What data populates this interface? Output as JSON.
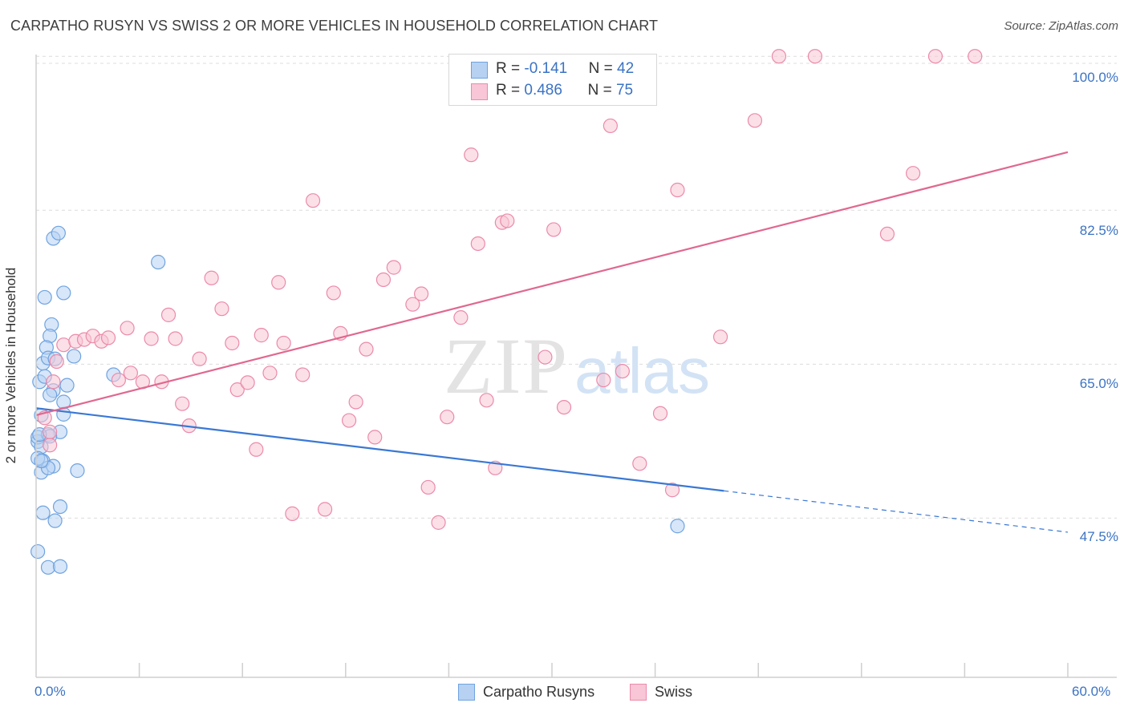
{
  "header": {
    "title": "CARPATHO RUSYN VS SWISS 2 OR MORE VEHICLES IN HOUSEHOLD CORRELATION CHART",
    "source": "Source: ZipAtlas.com"
  },
  "watermark": {
    "zip": "ZIP",
    "atlas": "atlas"
  },
  "legend": {
    "rows": [
      {
        "r_label": "R = ",
        "r_value": "-0.141",
        "n_label": "N = ",
        "n_value": "42"
      },
      {
        "r_label": "R = ",
        "r_value": "0.486",
        "n_label": "N = ",
        "n_value": "75"
      }
    ],
    "bottom": [
      "Carpatho Rusyns",
      "Swiss"
    ]
  },
  "chart_data": {
    "type": "scatter",
    "title": "CARPATHO RUSYN VS SWISS 2 OR MORE VEHICLES IN HOUSEHOLD CORRELATION CHART",
    "ylabel": "2 or more Vehicles in Household",
    "xlabel": "",
    "xlim": [
      0,
      60
    ],
    "ylim": [
      29.4,
      99.2
    ],
    "x_tick_labels": [
      "0.0%",
      "60.0%"
    ],
    "y_ticks": [
      47.5,
      65.0,
      82.5,
      100.0
    ],
    "y_tick_labels": [
      "47.5%",
      "65.0%",
      "82.5%",
      "100.0%"
    ],
    "grid": true,
    "colors": {
      "carpatho": "#6fa3e0",
      "carpatho_fill": "#b7d1f2",
      "swiss": "#ec8aa9",
      "swiss_fill": "#f8c6d6",
      "carpatho_line": "#3a78d4",
      "swiss_line": "#e0688f",
      "tick_text": "#3b73c4"
    },
    "series": [
      {
        "name": "Carpatho Rusyns",
        "points": [
          [
            0.2,
            63.0
          ],
          [
            0.5,
            72.6
          ],
          [
            0.4,
            65.1
          ],
          [
            0.3,
            59.2
          ],
          [
            0.1,
            56.2
          ],
          [
            0.1,
            56.7
          ],
          [
            0.3,
            55.6
          ],
          [
            0.4,
            54.0
          ],
          [
            0.3,
            52.7
          ],
          [
            0.1,
            54.3
          ],
          [
            0.1,
            43.7
          ],
          [
            0.4,
            48.1
          ],
          [
            0.7,
            41.9
          ],
          [
            1.0,
            79.3
          ],
          [
            1.3,
            79.9
          ],
          [
            1.6,
            73.1
          ],
          [
            0.9,
            69.5
          ],
          [
            0.8,
            68.2
          ],
          [
            0.6,
            66.9
          ],
          [
            0.7,
            65.7
          ],
          [
            1.1,
            65.6
          ],
          [
            2.2,
            65.9
          ],
          [
            0.5,
            63.6
          ],
          [
            1.0,
            62.0
          ],
          [
            0.8,
            61.5
          ],
          [
            1.8,
            62.6
          ],
          [
            1.6,
            60.7
          ],
          [
            1.6,
            59.3
          ],
          [
            1.4,
            57.3
          ],
          [
            0.7,
            57.0
          ],
          [
            0.8,
            56.8
          ],
          [
            1.0,
            53.4
          ],
          [
            0.7,
            53.2
          ],
          [
            2.4,
            52.9
          ],
          [
            1.4,
            48.8
          ],
          [
            1.1,
            47.2
          ],
          [
            1.4,
            42.0
          ],
          [
            7.1,
            76.6
          ],
          [
            4.5,
            63.8
          ],
          [
            37.3,
            46.6
          ],
          [
            0.2,
            57.0
          ],
          [
            0.3,
            54.0
          ]
        ],
        "trend": {
          "x": [
            0,
            40
          ],
          "y": [
            60.0,
            50.6
          ],
          "dashed_to": [
            60,
            45.9
          ]
        }
      },
      {
        "name": "Swiss",
        "points": [
          [
            0.5,
            58.9
          ],
          [
            0.8,
            55.8
          ],
          [
            0.8,
            57.3
          ],
          [
            1.0,
            63.0
          ],
          [
            1.2,
            65.3
          ],
          [
            1.6,
            67.2
          ],
          [
            2.3,
            67.6
          ],
          [
            2.8,
            67.8
          ],
          [
            3.3,
            68.2
          ],
          [
            3.8,
            67.6
          ],
          [
            4.2,
            68.0
          ],
          [
            4.8,
            63.2
          ],
          [
            5.3,
            69.1
          ],
          [
            5.5,
            64.0
          ],
          [
            6.2,
            63.0
          ],
          [
            6.7,
            67.9
          ],
          [
            7.3,
            63.0
          ],
          [
            7.7,
            70.6
          ],
          [
            8.1,
            67.9
          ],
          [
            8.5,
            60.5
          ],
          [
            8.9,
            58.0
          ],
          [
            9.5,
            65.6
          ],
          [
            10.2,
            74.8
          ],
          [
            10.8,
            71.3
          ],
          [
            11.4,
            67.4
          ],
          [
            11.7,
            62.1
          ],
          [
            12.3,
            62.9
          ],
          [
            12.8,
            55.3
          ],
          [
            13.1,
            68.3
          ],
          [
            13.6,
            64.0
          ],
          [
            14.1,
            74.3
          ],
          [
            14.4,
            67.4
          ],
          [
            14.9,
            48.0
          ],
          [
            15.5,
            63.8
          ],
          [
            16.1,
            83.6
          ],
          [
            16.8,
            48.5
          ],
          [
            17.3,
            73.1
          ],
          [
            17.7,
            68.5
          ],
          [
            18.2,
            58.6
          ],
          [
            18.6,
            60.7
          ],
          [
            19.2,
            66.7
          ],
          [
            19.7,
            56.7
          ],
          [
            20.2,
            74.6
          ],
          [
            20.8,
            76.0
          ],
          [
            21.9,
            71.8
          ],
          [
            22.4,
            73.0
          ],
          [
            22.8,
            51.0
          ],
          [
            23.4,
            47.0
          ],
          [
            23.9,
            59.0
          ],
          [
            24.7,
            70.3
          ],
          [
            25.3,
            88.8
          ],
          [
            25.7,
            78.7
          ],
          [
            26.2,
            60.9
          ],
          [
            26.7,
            53.2
          ],
          [
            27.1,
            81.1
          ],
          [
            27.4,
            81.3
          ],
          [
            29.6,
            65.8
          ],
          [
            30.1,
            80.3
          ],
          [
            30.7,
            60.1
          ],
          [
            32.2,
            96.9
          ],
          [
            33.0,
            63.2
          ],
          [
            33.4,
            92.1
          ],
          [
            34.1,
            64.2
          ],
          [
            35.1,
            53.7
          ],
          [
            36.3,
            59.4
          ],
          [
            37.0,
            50.7
          ],
          [
            37.3,
            84.8
          ],
          [
            39.8,
            68.1
          ],
          [
            41.8,
            92.7
          ],
          [
            43.2,
            100.0
          ],
          [
            45.3,
            100.0
          ],
          [
            49.5,
            79.8
          ],
          [
            51.0,
            86.7
          ],
          [
            52.3,
            100.0
          ],
          [
            54.6,
            100.0
          ]
        ],
        "trend": {
          "x": [
            0,
            60
          ],
          "y": [
            59.2,
            89.1
          ]
        }
      }
    ]
  }
}
